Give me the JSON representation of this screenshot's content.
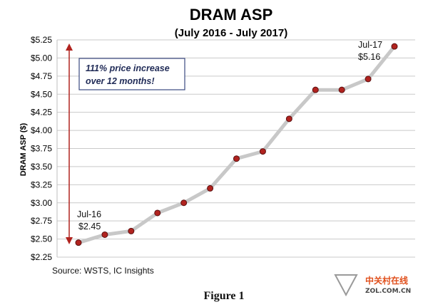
{
  "chart_data": {
    "type": "line",
    "title": "DRAM ASP",
    "subtitle": "(July 2016 - July 2017)",
    "ylabel": "DRAM ASP ($)",
    "ylim": [
      2.25,
      5.25
    ],
    "yticks": [
      "$2.25",
      "$2.50",
      "$2.75",
      "$3.00",
      "$3.25",
      "$3.50",
      "$3.75",
      "$4.00",
      "$4.25",
      "$4.50",
      "$4.75",
      "$5.00",
      "$5.25"
    ],
    "grid": true,
    "series": [
      {
        "values": [
          2.45,
          2.56,
          2.61,
          2.86,
          3.0,
          3.2,
          3.61,
          3.71,
          4.16,
          4.56,
          4.56,
          4.71,
          5.16
        ],
        "line_color": "#c8c8c8",
        "marker_color": "#b1231f"
      }
    ],
    "annotations": {
      "box_line1": "111% price increase",
      "box_line2": "over 12 months!",
      "start_label_1": "Jul-16",
      "start_label_2": "$2.45",
      "end_label_1": "Jul-17",
      "end_label_2": "$5.16",
      "arrow_color": "#b1231f"
    }
  },
  "source": "Source:  WSTS, IC Insights",
  "figure_caption": "Figure 1",
  "watermark": {
    "cn": "中关村在线",
    "en": "ZOL.COM.CN"
  }
}
